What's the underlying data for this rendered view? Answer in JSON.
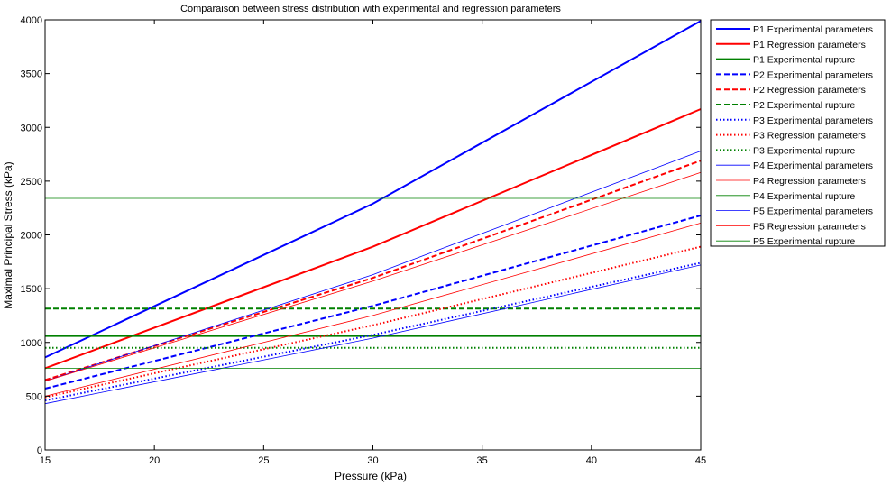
{
  "chart_data": {
    "type": "line",
    "title": "Comparaison between stress distribution with experimental and regression parameters",
    "xlabel": "Pressure (kPa)",
    "ylabel": "Maximal Principal Stress (kPa)",
    "xlim": [
      15,
      45
    ],
    "ylim": [
      0,
      4000
    ],
    "xticks": [
      15,
      20,
      25,
      30,
      35,
      40,
      45
    ],
    "yticks": [
      0,
      500,
      1000,
      1500,
      2000,
      2500,
      3000,
      3500,
      4000
    ],
    "grid": false,
    "legend_position": "outside-right",
    "series": [
      {
        "name": "P1 Experimental parameters",
        "color": "#0000ff",
        "dash": "solid",
        "weight": "thick",
        "x": [
          15,
          30,
          45
        ],
        "y": [
          860,
          2290,
          3990
        ]
      },
      {
        "name": "P1 Regression parameters",
        "color": "#ff0000",
        "dash": "solid",
        "weight": "thick",
        "x": [
          15,
          30,
          45
        ],
        "y": [
          760,
          1890,
          3170
        ]
      },
      {
        "name": "P1 Experimental rupture",
        "color": "#008000",
        "dash": "solid",
        "weight": "thick",
        "x": [
          15,
          45
        ],
        "y": [
          1060,
          1060
        ]
      },
      {
        "name": "P2 Experimental parameters",
        "color": "#0000ff",
        "dash": "dashed",
        "weight": "thick",
        "x": [
          15,
          30,
          45
        ],
        "y": [
          570,
          1340,
          2180
        ]
      },
      {
        "name": "P2 Regression parameters",
        "color": "#ff0000",
        "dash": "dashed",
        "weight": "thick",
        "x": [
          15,
          30,
          45
        ],
        "y": [
          650,
          1600,
          2690
        ]
      },
      {
        "name": "P2 Experimental rupture",
        "color": "#008000",
        "dash": "dashed",
        "weight": "thick",
        "x": [
          15,
          45
        ],
        "y": [
          1315,
          1315
        ]
      },
      {
        "name": "P3 Experimental parameters",
        "color": "#0000ff",
        "dash": "dotted",
        "weight": "thick",
        "x": [
          15,
          30,
          45
        ],
        "y": [
          460,
          1070,
          1740
        ]
      },
      {
        "name": "P3 Regression parameters",
        "color": "#ff0000",
        "dash": "dotted",
        "weight": "thick",
        "x": [
          15,
          30,
          45
        ],
        "y": [
          490,
          1160,
          1890
        ]
      },
      {
        "name": "P3 Experimental rupture",
        "color": "#008000",
        "dash": "dotted",
        "weight": "thick",
        "x": [
          15,
          45
        ],
        "y": [
          950,
          950
        ]
      },
      {
        "name": "P4 Experimental parameters",
        "color": "#0000ff",
        "dash": "solid",
        "weight": "thin",
        "x": [
          15,
          30,
          45
        ],
        "y": [
          640,
          1630,
          2780
        ]
      },
      {
        "name": "P4 Regression parameters",
        "color": "#ff0000",
        "dash": "solid",
        "weight": "thin",
        "x": [
          15,
          30,
          45
        ],
        "y": [
          640,
          1570,
          2580
        ]
      },
      {
        "name": "P4 Experimental rupture",
        "color": "#008000",
        "dash": "solid",
        "weight": "thin",
        "x": [
          15,
          45
        ],
        "y": [
          2340,
          2340
        ]
      },
      {
        "name": "P5 Experimental parameters",
        "color": "#0000ff",
        "dash": "solid",
        "weight": "thin",
        "x": [
          15,
          30,
          45
        ],
        "y": [
          430,
          1040,
          1720
        ]
      },
      {
        "name": "P5 Regression parameters",
        "color": "#ff0000",
        "dash": "solid",
        "weight": "thin",
        "x": [
          15,
          30,
          45
        ],
        "y": [
          500,
          1250,
          2110
        ]
      },
      {
        "name": "P5 Experimental rupture",
        "color": "#008000",
        "dash": "solid",
        "weight": "thin",
        "x": [
          15,
          45
        ],
        "y": [
          760,
          760
        ]
      }
    ]
  }
}
